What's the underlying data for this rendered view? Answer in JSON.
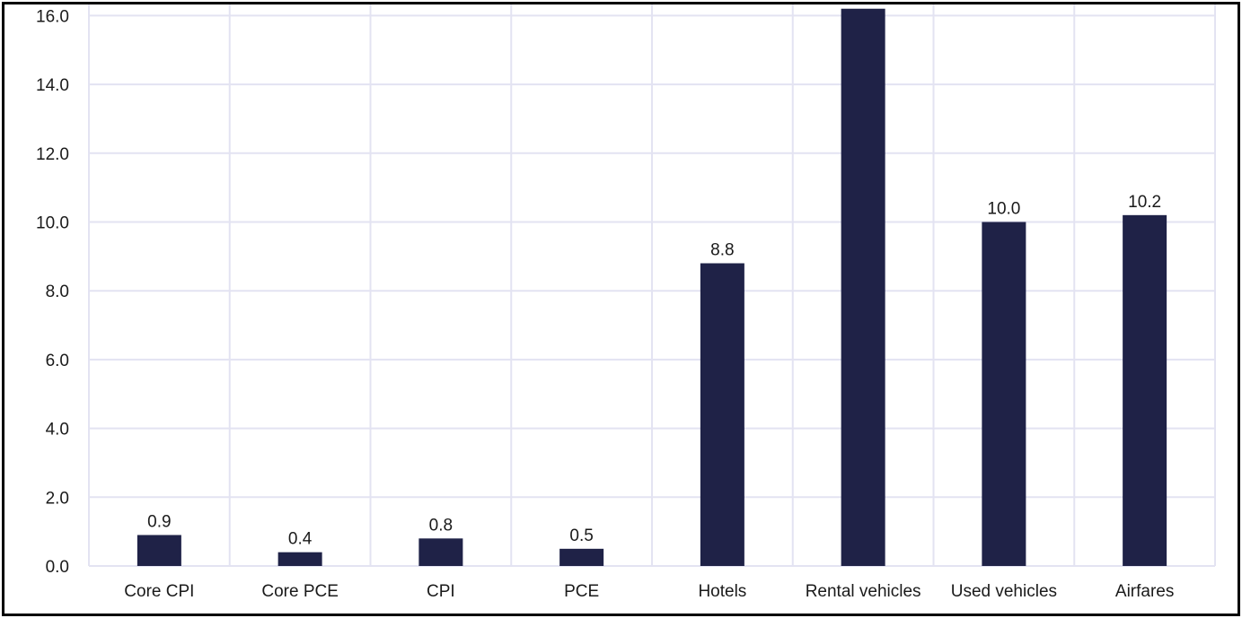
{
  "colors": {
    "bar": "#1f2247",
    "grid": "#e3e3f2",
    "border": "#000000"
  },
  "chart_data": {
    "type": "bar",
    "title": "",
    "xlabel": "",
    "ylabel": "",
    "categories": [
      "Core CPI",
      "Core PCE",
      "CPI",
      "PCE",
      "Hotels",
      "Rental vehicles",
      "Used vehicles",
      "Airfares"
    ],
    "values": [
      0.9,
      0.4,
      0.8,
      0.5,
      8.8,
      16.2,
      10.0,
      10.2
    ],
    "data_labels": [
      "0.9",
      "0.4",
      "0.8",
      "0.5",
      "8.8",
      "",
      "10.0",
      "10.2"
    ],
    "y_ticks": [
      0,
      2,
      4,
      6,
      8,
      10,
      12,
      14,
      16
    ],
    "y_tick_labels": [
      "0.0",
      "2.0",
      "4.0",
      "6.0",
      "8.0",
      "10.0",
      "12.0",
      "14.0",
      "16.0"
    ],
    "ylim": [
      0,
      16
    ],
    "grid": true,
    "legend": "none"
  }
}
